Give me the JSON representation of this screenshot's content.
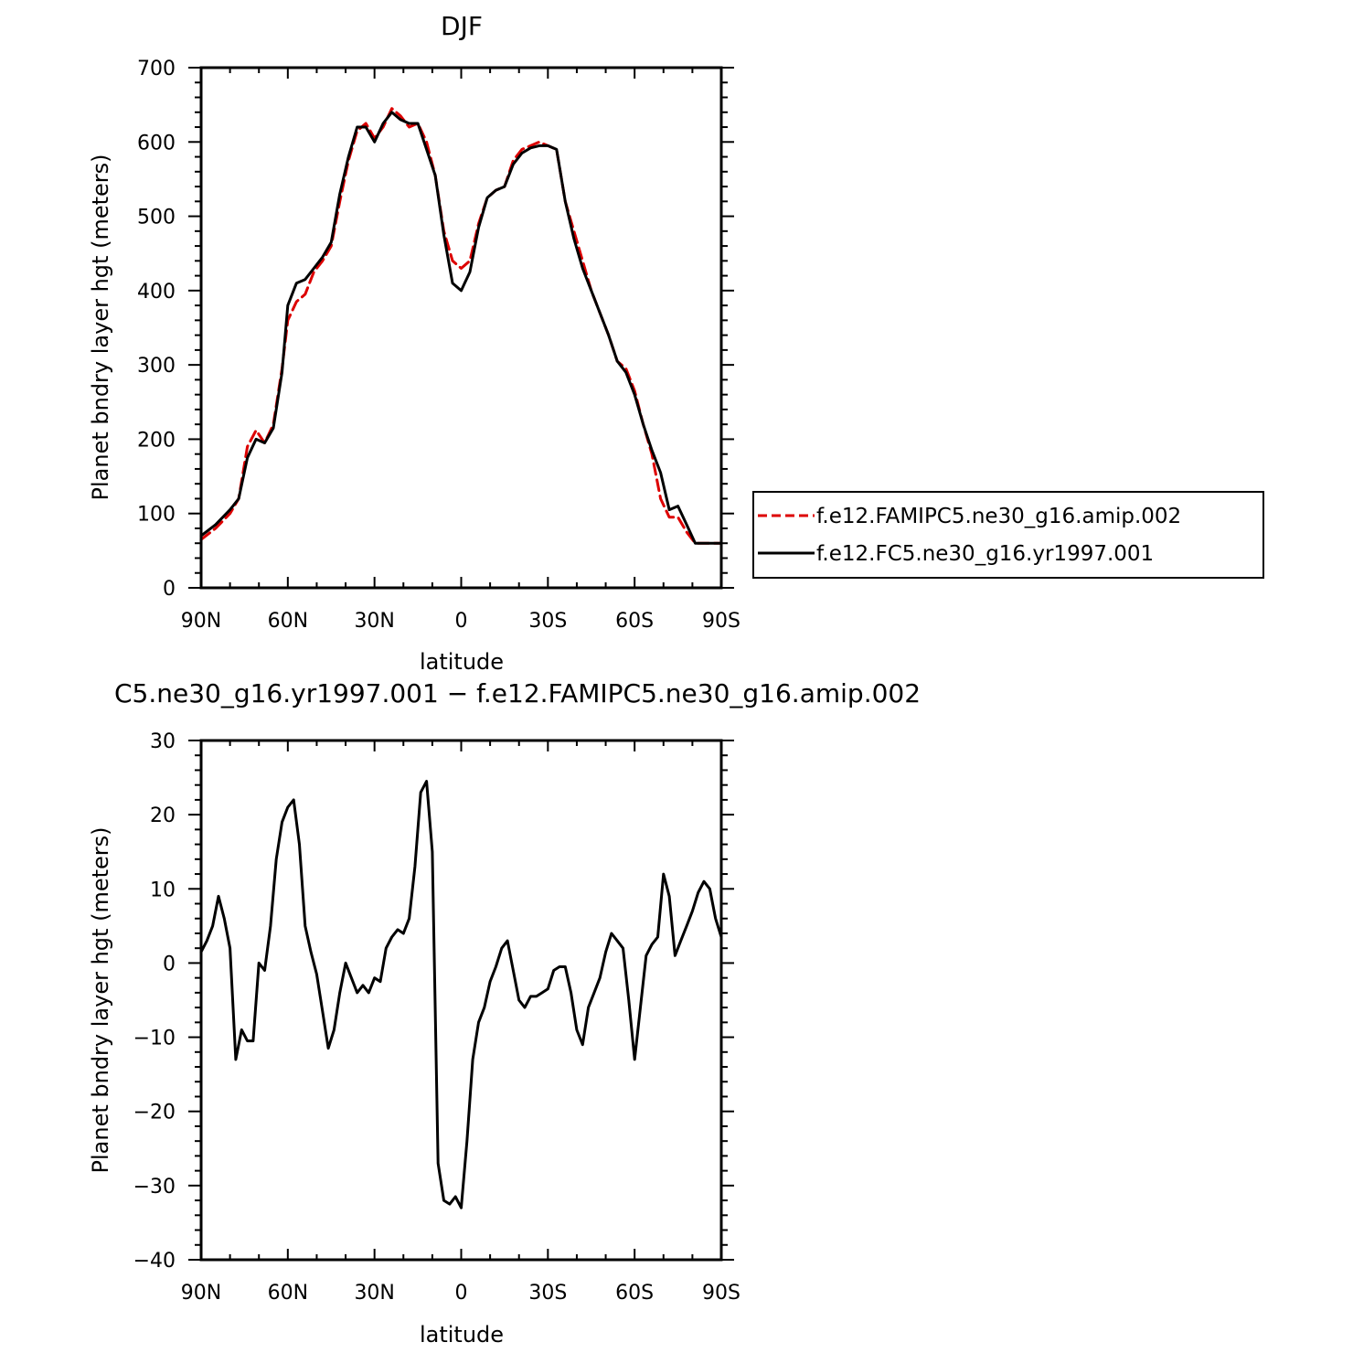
{
  "figure": {
    "title": "DJF",
    "diff_title": "C5.ne30_g16.yr1997.001 − f.e12.FAMIPC5.ne30_g16.amip.002"
  },
  "chart_data": [
    {
      "type": "line",
      "title": "DJF",
      "xlabel": "latitude",
      "ylabel": "Planet bndry layer hgt (meters)",
      "xlim": [
        -90,
        90
      ],
      "ylim": [
        0,
        700
      ],
      "x_direction": "north-to-south",
      "xticks": [
        -90,
        -60,
        -30,
        0,
        30,
        60,
        90
      ],
      "xtick_labels": [
        "90N",
        "60N",
        "30N",
        "0",
        "30S",
        "60S",
        "90S"
      ],
      "yticks": [
        0,
        100,
        200,
        300,
        400,
        500,
        600,
        700
      ],
      "ytick_labels": [
        "0",
        "100",
        "200",
        "300",
        "400",
        "500",
        "600",
        "700"
      ],
      "grid": false,
      "legend": "right-outside",
      "x": [
        -90,
        -85,
        -80,
        -77,
        -74,
        -71,
        -68,
        -65,
        -62,
        -60,
        -57,
        -54,
        -51,
        -48,
        -45,
        -42,
        -39,
        -36,
        -33,
        -30,
        -27,
        -24,
        -21,
        -18,
        -15,
        -12,
        -9,
        -6,
        -3,
        0,
        3,
        6,
        9,
        12,
        15,
        18,
        21,
        24,
        27,
        30,
        33,
        36,
        39,
        42,
        45,
        48,
        51,
        54,
        57,
        60,
        63,
        66,
        69,
        72,
        75,
        78,
        81,
        84,
        87,
        90
      ],
      "series": [
        {
          "name": "f.e12.FAMIPC5.ne30_g16.amip.002",
          "color": "#dd0000",
          "dash": "dashed",
          "values": [
            65,
            80,
            100,
            120,
            190,
            212,
            195,
            220,
            295,
            360,
            385,
            395,
            425,
            440,
            460,
            520,
            575,
            615,
            625,
            605,
            620,
            645,
            635,
            620,
            625,
            600,
            555,
            480,
            440,
            430,
            440,
            490,
            525,
            535,
            540,
            575,
            590,
            595,
            600,
            595,
            590,
            520,
            480,
            440,
            400,
            370,
            340,
            305,
            295,
            265,
            220,
            180,
            120,
            95,
            95,
            75,
            60,
            60,
            60,
            60
          ]
        },
        {
          "name": "f.e12.FC5.ne30_g16.yr1997.001",
          "color": "#000000",
          "dash": "solid",
          "values": [
            70,
            85,
            105,
            120,
            175,
            200,
            195,
            215,
            290,
            380,
            410,
            415,
            430,
            445,
            465,
            530,
            580,
            620,
            620,
            600,
            625,
            640,
            630,
            625,
            625,
            590,
            555,
            475,
            410,
            400,
            425,
            485,
            525,
            535,
            540,
            570,
            585,
            592,
            595,
            595,
            590,
            520,
            470,
            430,
            400,
            370,
            340,
            305,
            290,
            260,
            220,
            185,
            155,
            105,
            110,
            85,
            60,
            60,
            60,
            60
          ]
        }
      ]
    },
    {
      "type": "line",
      "title": "C5.ne30_g16.yr1997.001 − f.e12.FAMIPC5.ne30_g16.amip.002",
      "xlabel": "latitude",
      "ylabel": "Planet bndry layer hgt (meters)",
      "xlim": [
        -90,
        90
      ],
      "ylim": [
        -40,
        30
      ],
      "x_direction": "north-to-south",
      "xticks": [
        -90,
        -60,
        -30,
        0,
        30,
        60,
        90
      ],
      "xtick_labels": [
        "90N",
        "60N",
        "30N",
        "0",
        "30S",
        "60S",
        "90S"
      ],
      "yticks": [
        -40,
        -30,
        -20,
        -10,
        0,
        10,
        20,
        30
      ],
      "ytick_labels": [
        "−40",
        "−30",
        "−20",
        "−10",
        "0",
        "10",
        "20",
        "30"
      ],
      "grid": false,
      "x": [
        -90,
        -88,
        -86,
        -84,
        -82,
        -80,
        -78,
        -76,
        -74,
        -72,
        -70,
        -68,
        -66,
        -64,
        -62,
        -60,
        -58,
        -56,
        -54,
        -52,
        -50,
        -48,
        -46,
        -44,
        -42,
        -40,
        -38,
        -36,
        -34,
        -32,
        -30,
        -28,
        -26,
        -24,
        -22,
        -20,
        -18,
        -16,
        -14,
        -12,
        -10,
        -8,
        -6,
        -4,
        -2,
        0,
        2,
        4,
        6,
        8,
        10,
        12,
        14,
        16,
        18,
        20,
        22,
        24,
        26,
        28,
        30,
        32,
        34,
        36,
        38,
        40,
        42,
        44,
        46,
        48,
        50,
        52,
        54,
        56,
        58,
        60,
        62,
        64,
        66,
        68,
        70,
        72,
        74,
        76,
        78,
        80,
        82,
        84,
        86,
        88,
        90
      ],
      "series": [
        {
          "name": "",
          "color": "#000000",
          "dash": "solid",
          "values": [
            1.5,
            3,
            5,
            9,
            6,
            2,
            -13,
            -9,
            -10.5,
            -10.5,
            0,
            -1,
            5,
            14,
            19,
            21,
            22,
            16,
            5,
            1.5,
            -1.5,
            -6.5,
            -11.5,
            -9,
            -4,
            0,
            -2,
            -4,
            -3,
            -4,
            -2,
            -2.5,
            2,
            3.5,
            4.5,
            4,
            6,
            13,
            23,
            24.5,
            15,
            -27,
            -32,
            -32.5,
            -31.5,
            -33,
            -24,
            -13,
            -8,
            -6,
            -2.5,
            -0.5,
            2,
            3,
            -1,
            -5,
            -6,
            -4.5,
            -4.5,
            -4,
            -3.5,
            -1,
            -0.5,
            -0.5,
            -4,
            -9,
            -11,
            -6,
            -4,
            -2,
            1.5,
            4,
            3,
            2,
            -5,
            -13,
            -6,
            1,
            2.5,
            3.5,
            12,
            9,
            1,
            3,
            5,
            7,
            9.5,
            11,
            10,
            6,
            3.5
          ]
        }
      ]
    }
  ]
}
